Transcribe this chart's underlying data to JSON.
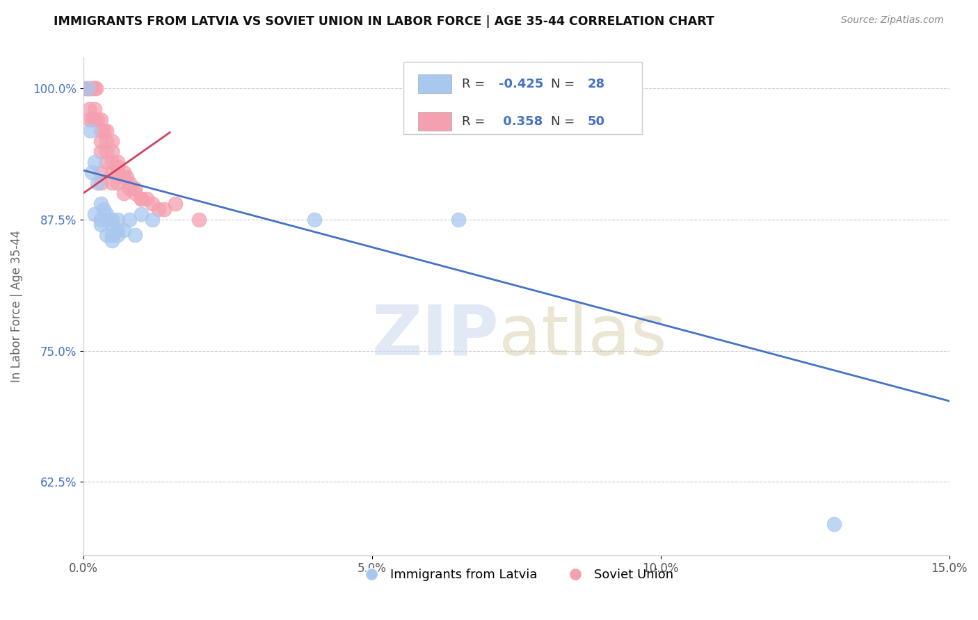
{
  "title": "IMMIGRANTS FROM LATVIA VS SOVIET UNION IN LABOR FORCE | AGE 35-44 CORRELATION CHART",
  "source": "Source: ZipAtlas.com",
  "ylabel": "In Labor Force | Age 35-44",
  "xlim": [
    0.0,
    0.15
  ],
  "ylim": [
    0.555,
    1.03
  ],
  "yticks": [
    0.625,
    0.75,
    0.875,
    1.0
  ],
  "ytick_labels": [
    "62.5%",
    "75.0%",
    "87.5%",
    "100.0%"
  ],
  "xticks": [
    0.0,
    0.05,
    0.1,
    0.15
  ],
  "xtick_labels": [
    "0.0%",
    "5.0%",
    "10.0%",
    "15.0%"
  ],
  "latvia_R": -0.425,
  "latvia_N": 28,
  "soviet_R": 0.358,
  "soviet_N": 50,
  "latvia_color": "#a8c8f0",
  "soviet_color": "#f5a0b0",
  "latvia_line_color": "#4472c4",
  "soviet_line_color": "#d04060",
  "latvia_line": [
    0.0,
    0.922,
    0.15,
    0.702
  ],
  "soviet_line": [
    0.0,
    0.9,
    0.015,
    0.958
  ],
  "latvia_x": [
    0.0008,
    0.0012,
    0.0015,
    0.002,
    0.002,
    0.0025,
    0.003,
    0.003,
    0.003,
    0.0035,
    0.004,
    0.004,
    0.004,
    0.005,
    0.005,
    0.005,
    0.005,
    0.006,
    0.006,
    0.006,
    0.007,
    0.008,
    0.009,
    0.01,
    0.012,
    0.04,
    0.065,
    0.13
  ],
  "latvia_y": [
    1.0,
    0.96,
    0.92,
    0.93,
    0.88,
    0.91,
    0.89,
    0.875,
    0.87,
    0.885,
    0.88,
    0.875,
    0.86,
    0.875,
    0.87,
    0.86,
    0.855,
    0.875,
    0.865,
    0.86,
    0.865,
    0.875,
    0.86,
    0.88,
    0.875,
    0.875,
    0.875,
    0.585
  ],
  "soviet_x": [
    0.0003,
    0.0005,
    0.0008,
    0.001,
    0.001,
    0.001,
    0.0012,
    0.0015,
    0.0015,
    0.002,
    0.002,
    0.002,
    0.0022,
    0.0025,
    0.003,
    0.003,
    0.003,
    0.003,
    0.003,
    0.003,
    0.0035,
    0.004,
    0.004,
    0.004,
    0.004,
    0.005,
    0.005,
    0.005,
    0.005,
    0.005,
    0.006,
    0.006,
    0.006,
    0.006,
    0.007,
    0.007,
    0.007,
    0.0075,
    0.008,
    0.008,
    0.009,
    0.009,
    0.01,
    0.01,
    0.011,
    0.012,
    0.013,
    0.014,
    0.016,
    0.02
  ],
  "soviet_y": [
    1.0,
    1.0,
    1.0,
    1.0,
    0.98,
    0.97,
    1.0,
    1.0,
    0.97,
    1.0,
    0.98,
    0.97,
    1.0,
    0.97,
    0.97,
    0.96,
    0.95,
    0.94,
    0.92,
    0.91,
    0.96,
    0.96,
    0.95,
    0.94,
    0.93,
    0.95,
    0.94,
    0.93,
    0.92,
    0.91,
    0.93,
    0.925,
    0.92,
    0.91,
    0.92,
    0.915,
    0.9,
    0.915,
    0.91,
    0.905,
    0.905,
    0.9,
    0.895,
    0.895,
    0.895,
    0.89,
    0.885,
    0.885,
    0.89,
    0.875
  ]
}
